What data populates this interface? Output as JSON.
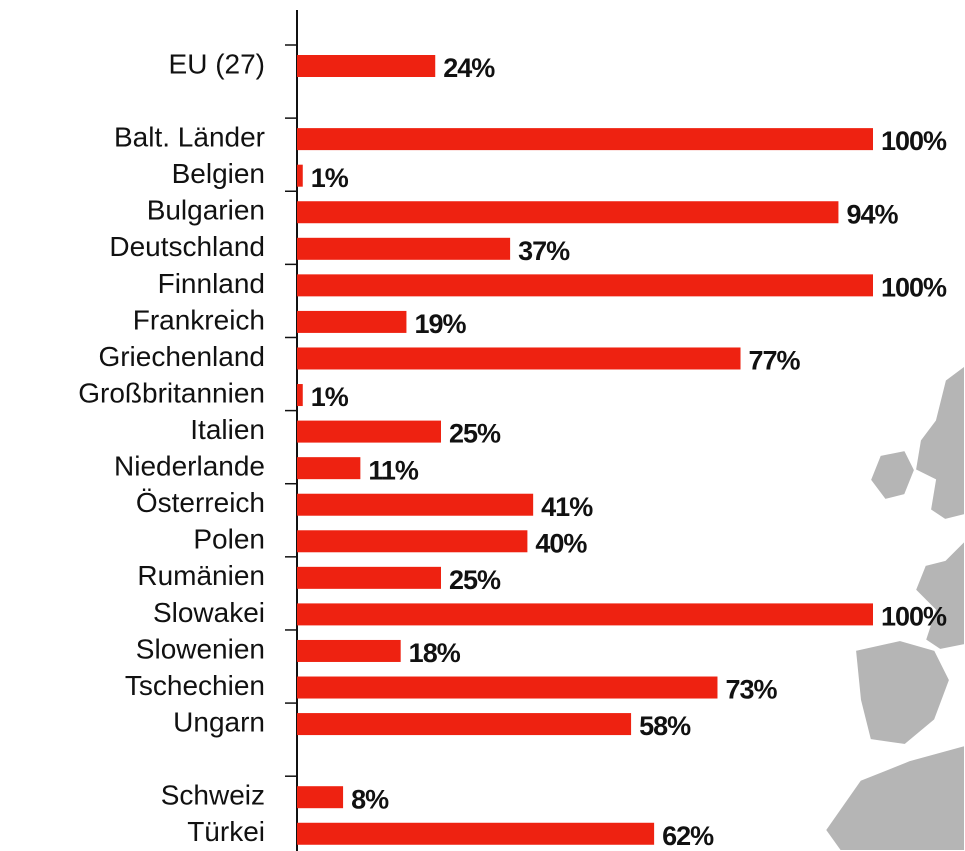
{
  "chart_data": {
    "type": "bar",
    "orientation": "horizontal",
    "categories": [
      "EU (27)",
      null,
      "Balt. Länder",
      "Belgien",
      "Bulgarien",
      "Deutschland",
      "Finnland",
      "Frankreich",
      "Griechenland",
      "Großbritannien",
      "Italien",
      "Niederlande",
      "Österreich",
      "Polen",
      "Rumänien",
      "Slowakei",
      "Slowenien",
      "Tschechien",
      "Ungarn",
      null,
      "Schweiz",
      "Türkei"
    ],
    "values": [
      24,
      null,
      100,
      1,
      94,
      37,
      100,
      19,
      77,
      1,
      25,
      11,
      41,
      40,
      25,
      100,
      18,
      73,
      58,
      null,
      8,
      62
    ],
    "value_labels": [
      "24%",
      null,
      "100%",
      "1%",
      "94%",
      "37%",
      "100%",
      "19%",
      "77%",
      "1%",
      "25%",
      "11%",
      "41%",
      "40%",
      "25%",
      "100%",
      "18%",
      "73%",
      "58%",
      null,
      "8%",
      "62%"
    ],
    "color": "#ee2211",
    "xlim": [
      0,
      100
    ]
  }
}
